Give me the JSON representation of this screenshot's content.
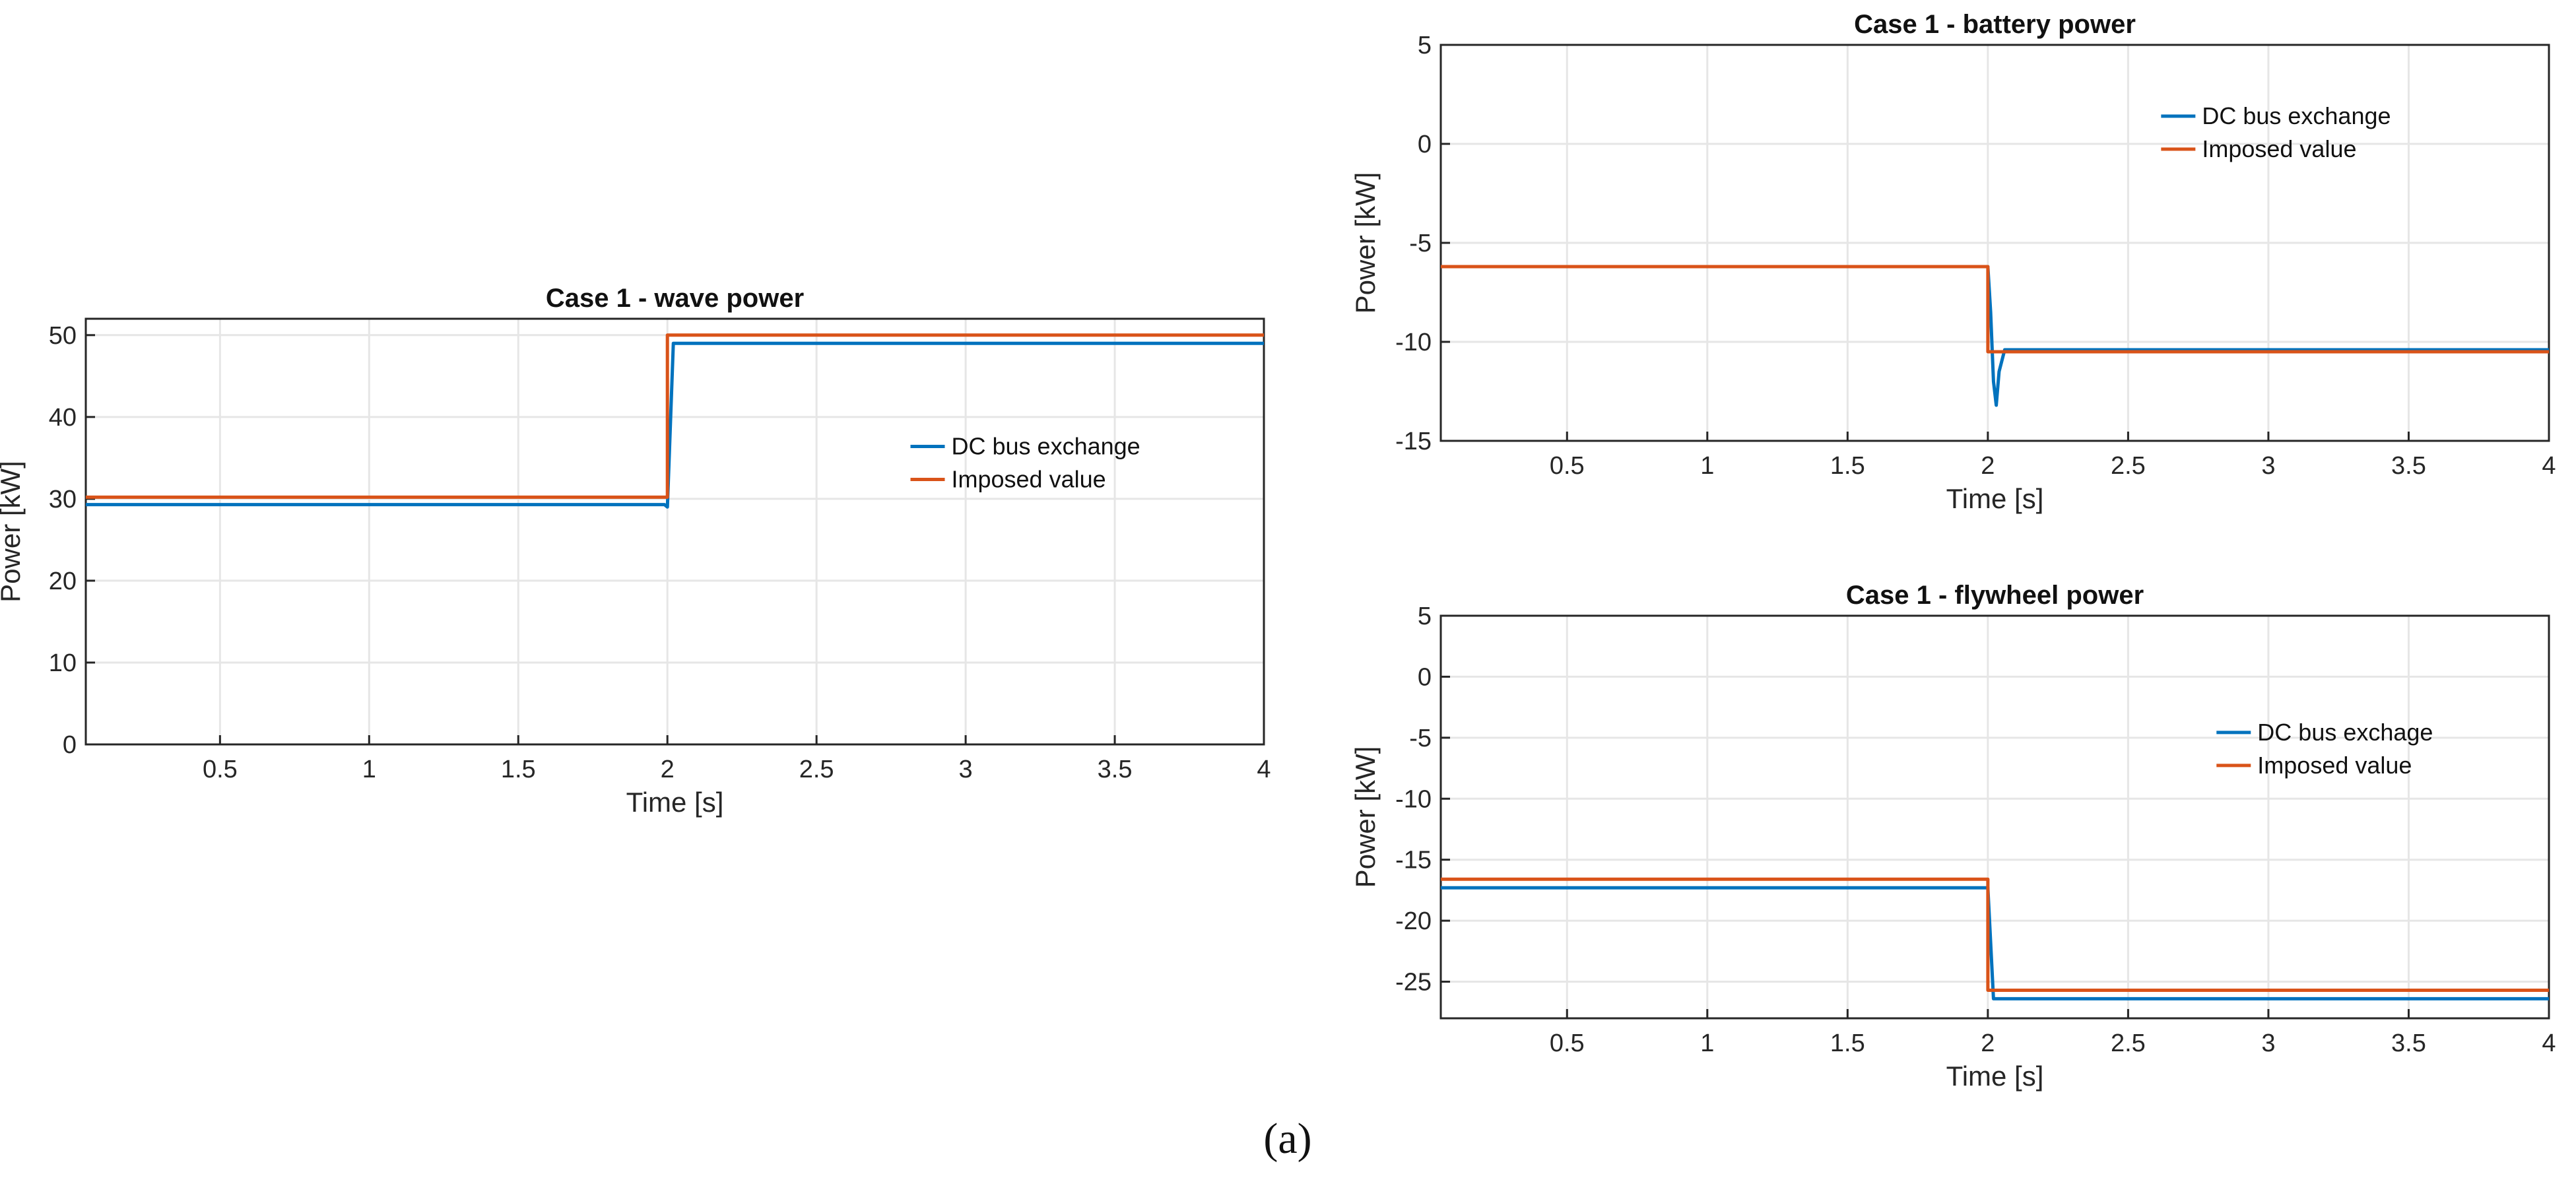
{
  "caption": "(a)",
  "chart_data": [
    {
      "type": "line",
      "title": "Case 1 - wave power",
      "xlabel": "Time [s]",
      "ylabel": "Power [kW]",
      "xlim": [
        0.05,
        4
      ],
      "ylim": [
        0,
        52
      ],
      "xticks": [
        0.5,
        1,
        1.5,
        2,
        2.5,
        3,
        3.5,
        4
      ],
      "xtick_labels": [
        "0.5",
        "1",
        "1.5",
        "2",
        "2.5",
        "3",
        "3.5",
        "4"
      ],
      "yticks": [
        0,
        10,
        20,
        30,
        40,
        50
      ],
      "ytick_labels": [
        "0",
        "10",
        "20",
        "30",
        "40",
        "50"
      ],
      "grid": true,
      "legend_position": "center-right",
      "series": [
        {
          "name": "DC bus exchange",
          "color": "#0072bd",
          "x": [
            0.05,
            1.99,
            2.0,
            2.02,
            4.0
          ],
          "y": [
            29.3,
            29.3,
            29.0,
            49.0,
            49.0
          ]
        },
        {
          "name": "Imposed value",
          "color": "#d95319",
          "x": [
            0.05,
            2.0,
            2.0,
            4.0
          ],
          "y": [
            30.2,
            30.2,
            50.0,
            50.0
          ]
        }
      ]
    },
    {
      "type": "line",
      "title": "Case 1 - battery power",
      "xlabel": "Time [s]",
      "ylabel": "Power [kW]",
      "xlim": [
        0.05,
        4
      ],
      "ylim": [
        -15,
        5
      ],
      "xticks": [
        0.5,
        1,
        1.5,
        2,
        2.5,
        3,
        3.5,
        4
      ],
      "xtick_labels": [
        "0.5",
        "1",
        "1.5",
        "2",
        "2.5",
        "3",
        "3.5",
        "4"
      ],
      "yticks": [
        -15,
        -10,
        -5,
        0,
        5
      ],
      "ytick_labels": [
        "-15",
        "-10",
        "-5",
        "0",
        "5"
      ],
      "grid": true,
      "legend_position": "top-right",
      "series": [
        {
          "name": "DC bus exchange",
          "color": "#0072bd",
          "x": [
            0.05,
            1.99,
            2.0,
            2.01,
            2.02,
            2.03,
            2.04,
            2.06,
            4.0
          ],
          "y": [
            -6.2,
            -6.2,
            -6.2,
            -8.5,
            -12.0,
            -13.2,
            -11.5,
            -10.4,
            -10.4
          ]
        },
        {
          "name": "Imposed value",
          "color": "#d95319",
          "x": [
            0.05,
            2.0,
            2.0,
            4.0
          ],
          "y": [
            -6.2,
            -6.2,
            -10.5,
            -10.5
          ]
        }
      ]
    },
    {
      "type": "line",
      "title": "Case 1 - flywheel power",
      "xlabel": "Time [s]",
      "ylabel": "Power [kW]",
      "xlim": [
        0.05,
        4
      ],
      "ylim": [
        -28,
        5
      ],
      "xticks": [
        0.5,
        1,
        1.5,
        2,
        2.5,
        3,
        3.5,
        4
      ],
      "xtick_labels": [
        "0.5",
        "1",
        "1.5",
        "2",
        "2.5",
        "3",
        "3.5",
        "4"
      ],
      "yticks": [
        -25,
        -20,
        -15,
        -10,
        -5,
        0,
        5
      ],
      "ytick_labels": [
        "-25",
        "-20",
        "-15",
        "-10",
        "-5",
        "0",
        "5"
      ],
      "grid": true,
      "legend_position": "center-right",
      "series": [
        {
          "name": "DC bus exchage",
          "color": "#0072bd",
          "x": [
            0.05,
            1.99,
            2.0,
            2.02,
            4.0
          ],
          "y": [
            -17.3,
            -17.3,
            -17.3,
            -26.4,
            -26.4
          ]
        },
        {
          "name": "Imposed value",
          "color": "#d95319",
          "x": [
            0.05,
            2.0,
            2.0,
            4.0
          ],
          "y": [
            -16.6,
            -16.6,
            -25.7,
            -25.7
          ]
        }
      ]
    }
  ]
}
